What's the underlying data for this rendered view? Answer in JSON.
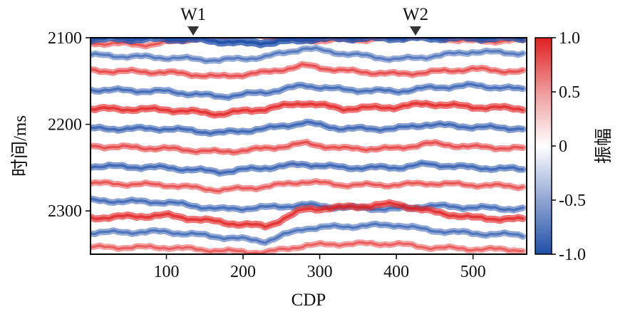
{
  "chart_data": {
    "type": "heatmap",
    "title": "",
    "xlabel": "CDP",
    "ylabel": "时间/ms",
    "x_ticks": [
      100,
      200,
      300,
      400,
      500
    ],
    "y_ticks": [
      2100,
      2200,
      2300
    ],
    "xlim": [
      1,
      570
    ],
    "ylim": [
      2100,
      2350
    ],
    "y_inverted": true,
    "wells": [
      {
        "name": "W1",
        "cdp": 135
      },
      {
        "name": "W2",
        "cdp": 425
      }
    ],
    "colorbar": {
      "label": "振幅",
      "range": [
        -1.0,
        1.0
      ],
      "tick_labels": [
        "1.0",
        "0.5",
        "0",
        "-0.5",
        "-1.0"
      ],
      "tick_values": [
        1.0,
        0.5,
        0,
        -0.5,
        -1.0
      ],
      "colors": {
        "negative": "#1f4fa8",
        "zero": "#ffffff",
        "positive": "#e02020"
      }
    },
    "horizons": [
      {
        "polarity": 1,
        "amplitude": 0.35,
        "points": [
          [
            1,
            2106
          ],
          [
            80,
            2108
          ],
          [
            135,
            2101
          ],
          [
            200,
            2096
          ],
          [
            280,
            2103
          ],
          [
            360,
            2102
          ],
          [
            425,
            2098
          ],
          [
            500,
            2104
          ],
          [
            570,
            2103
          ]
        ]
      },
      {
        "polarity": -1,
        "amplitude": 0.85,
        "points": [
          [
            1,
            2101
          ],
          [
            120,
            2101
          ],
          [
            160,
            2103
          ],
          [
            200,
            2106
          ],
          [
            240,
            2105
          ],
          [
            290,
            2101
          ],
          [
            330,
            2100
          ],
          [
            570,
            2100
          ]
        ]
      },
      {
        "polarity": -1,
        "amplitude": 0.35,
        "points": [
          [
            1,
            2120
          ],
          [
            100,
            2123
          ],
          [
            170,
            2126
          ],
          [
            230,
            2122
          ],
          [
            280,
            2112
          ],
          [
            330,
            2118
          ],
          [
            400,
            2125
          ],
          [
            440,
            2122
          ],
          [
            500,
            2116
          ],
          [
            570,
            2118
          ]
        ]
      },
      {
        "polarity": 1,
        "amplitude": 0.4,
        "points": [
          [
            1,
            2138
          ],
          [
            100,
            2140
          ],
          [
            170,
            2145
          ],
          [
            230,
            2140
          ],
          [
            280,
            2132
          ],
          [
            330,
            2138
          ],
          [
            400,
            2142
          ],
          [
            440,
            2140
          ],
          [
            500,
            2136
          ],
          [
            570,
            2140
          ]
        ]
      },
      {
        "polarity": -1,
        "amplitude": 0.45,
        "points": [
          [
            1,
            2160
          ],
          [
            100,
            2162
          ],
          [
            170,
            2168
          ],
          [
            230,
            2163
          ],
          [
            280,
            2155
          ],
          [
            330,
            2160
          ],
          [
            400,
            2162
          ],
          [
            440,
            2158
          ],
          [
            500,
            2155
          ],
          [
            570,
            2160
          ]
        ]
      },
      {
        "polarity": 1,
        "amplitude": 0.6,
        "points": [
          [
            1,
            2182
          ],
          [
            100,
            2183
          ],
          [
            170,
            2188
          ],
          [
            230,
            2182
          ],
          [
            280,
            2175
          ],
          [
            330,
            2182
          ],
          [
            400,
            2180
          ],
          [
            440,
            2176
          ],
          [
            500,
            2180
          ],
          [
            570,
            2182
          ]
        ]
      },
      {
        "polarity": -1,
        "amplitude": 0.5,
        "points": [
          [
            1,
            2205
          ],
          [
            100,
            2205
          ],
          [
            170,
            2210
          ],
          [
            230,
            2205
          ],
          [
            280,
            2198
          ],
          [
            330,
            2205
          ],
          [
            400,
            2205
          ],
          [
            440,
            2200
          ],
          [
            500,
            2203
          ],
          [
            570,
            2205
          ]
        ]
      },
      {
        "polarity": 1,
        "amplitude": 0.4,
        "points": [
          [
            1,
            2225
          ],
          [
            100,
            2228
          ],
          [
            170,
            2232
          ],
          [
            230,
            2228
          ],
          [
            280,
            2222
          ],
          [
            330,
            2228
          ],
          [
            400,
            2228
          ],
          [
            440,
            2222
          ],
          [
            500,
            2226
          ],
          [
            570,
            2228
          ]
        ]
      },
      {
        "polarity": -1,
        "amplitude": 0.5,
        "points": [
          [
            1,
            2248
          ],
          [
            100,
            2250
          ],
          [
            170,
            2255
          ],
          [
            230,
            2250
          ],
          [
            280,
            2246
          ],
          [
            330,
            2250
          ],
          [
            400,
            2250
          ],
          [
            440,
            2246
          ],
          [
            500,
            2250
          ],
          [
            570,
            2252
          ]
        ]
      },
      {
        "polarity": 1,
        "amplitude": 0.35,
        "points": [
          [
            1,
            2268
          ],
          [
            100,
            2270
          ],
          [
            170,
            2276
          ],
          [
            230,
            2272
          ],
          [
            280,
            2266
          ],
          [
            330,
            2270
          ],
          [
            400,
            2270
          ],
          [
            440,
            2268
          ],
          [
            500,
            2270
          ],
          [
            570,
            2272
          ]
        ]
      },
      {
        "polarity": -1,
        "amplitude": 0.45,
        "points": [
          [
            1,
            2288
          ],
          [
            100,
            2290
          ],
          [
            170,
            2298
          ],
          [
            230,
            2296
          ],
          [
            280,
            2293
          ],
          [
            330,
            2296
          ],
          [
            400,
            2298
          ],
          [
            440,
            2294
          ],
          [
            500,
            2296
          ],
          [
            570,
            2298
          ]
        ]
      },
      {
        "polarity": 1,
        "amplitude": 0.6,
        "points": [
          [
            1,
            2308
          ],
          [
            100,
            2305
          ],
          [
            170,
            2313
          ],
          [
            230,
            2318
          ],
          [
            280,
            2298
          ],
          [
            330,
            2296
          ],
          [
            400,
            2292
          ],
          [
            440,
            2300
          ],
          [
            500,
            2308
          ],
          [
            570,
            2310
          ]
        ]
      },
      {
        "polarity": -1,
        "amplitude": 0.4,
        "points": [
          [
            1,
            2325
          ],
          [
            100,
            2324
          ],
          [
            170,
            2330
          ],
          [
            230,
            2335
          ],
          [
            280,
            2320
          ],
          [
            330,
            2318
          ],
          [
            400,
            2316
          ],
          [
            440,
            2322
          ],
          [
            500,
            2326
          ],
          [
            570,
            2328
          ]
        ]
      },
      {
        "polarity": 1,
        "amplitude": 0.3,
        "points": [
          [
            1,
            2342
          ],
          [
            100,
            2342
          ],
          [
            170,
            2346
          ],
          [
            230,
            2348
          ],
          [
            280,
            2340
          ],
          [
            330,
            2338
          ],
          [
            400,
            2338
          ],
          [
            440,
            2342
          ],
          [
            500,
            2344
          ],
          [
            570,
            2345
          ]
        ]
      }
    ]
  }
}
